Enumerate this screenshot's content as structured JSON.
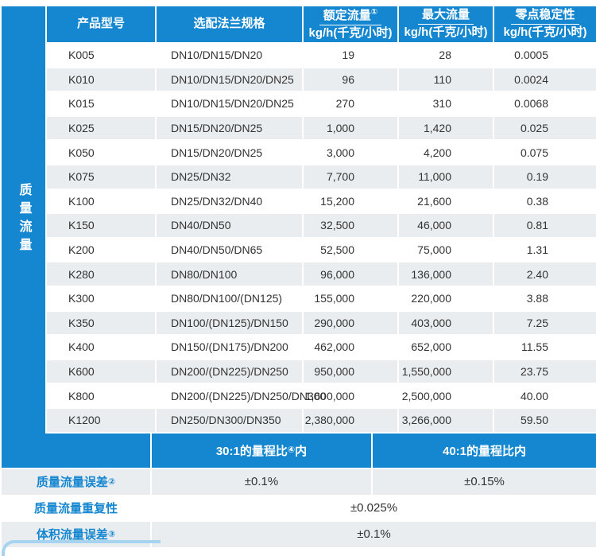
{
  "colors": {
    "accent_blue": "#1487d0",
    "row_gray": "#e9edf0",
    "corner_light_blue": "#a6d4ef",
    "text_dark": "#333333",
    "text_white": "#ffffff"
  },
  "sidebar": {
    "label": "质量流量"
  },
  "table": {
    "headers": {
      "model": "产品型号",
      "flange": "选配法兰规格",
      "rated_title": "额定流量",
      "rated_sup": "①",
      "rated_unit": "kg/h(千克/小时)",
      "max_title": "最大流量",
      "max_unit": "kg/h(千克/小时)",
      "zero_title": "零点稳定性",
      "zero_unit": "kg/h(千克/小时)"
    },
    "rows": [
      {
        "model": "K005",
        "flange": "DN10/DN15/DN20",
        "rated": "19",
        "max": "28",
        "zero": "0.0005"
      },
      {
        "model": "K010",
        "flange": "DN10/DN15/DN20/DN25",
        "rated": "96",
        "max": "110",
        "zero": "0.0024"
      },
      {
        "model": "K015",
        "flange": "DN10/DN15/DN20/DN25",
        "rated": "270",
        "max": "310",
        "zero": "0.0068"
      },
      {
        "model": "K025",
        "flange": "DN15/DN20/DN25",
        "rated": "1,000",
        "max": "1,420",
        "zero": "0.025"
      },
      {
        "model": "K050",
        "flange": "DN15/DN20/DN25",
        "rated": "3,000",
        "max": "4,200",
        "zero": "0.075"
      },
      {
        "model": "K075",
        "flange": "DN25/DN32",
        "rated": "7,700",
        "max": "11,000",
        "zero": "0.19"
      },
      {
        "model": "K100",
        "flange": "DN25/DN32/DN40",
        "rated": "15,200",
        "max": "21,600",
        "zero": "0.38"
      },
      {
        "model": "K150",
        "flange": "DN40/DN50",
        "rated": "32,500",
        "max": "46,000",
        "zero": "0.81"
      },
      {
        "model": "K200",
        "flange": "DN40/DN50/DN65",
        "rated": "52,500",
        "max": "75,000",
        "zero": "1.31"
      },
      {
        "model": "K280",
        "flange": "DN80/DN100",
        "rated": "96,000",
        "max": "136,000",
        "zero": "2.40"
      },
      {
        "model": "K300",
        "flange": "DN80/DN100/(DN125)",
        "rated": "155,000",
        "max": "220,000",
        "zero": "3.88"
      },
      {
        "model": "K350",
        "flange": "DN100/(DN125)/DN150",
        "rated": "290,000",
        "max": "403,000",
        "zero": "7.25"
      },
      {
        "model": "K400",
        "flange": "DN150/(DN175)/DN200",
        "rated": "462,000",
        "max": "652,000",
        "zero": "11.55"
      },
      {
        "model": "K600",
        "flange": "DN200/(DN225)/DN250",
        "rated": "950,000",
        "max": "1,550,000",
        "zero": "23.75"
      },
      {
        "model": "K800",
        "flange": "DN200/(DN225)/DN250/DN300",
        "rated": "1,600,000",
        "max": "2,500,000",
        "zero": "40.00"
      },
      {
        "model": "K1200",
        "flange": "DN250/DN300/DN350",
        "rated": "2,380,000",
        "max": "3,266,000",
        "zero": "59.50"
      }
    ]
  },
  "accuracy": {
    "band": {
      "col1_pre": "30:1的量程比",
      "col1_sup": "④",
      "col1_post": "内",
      "col2": "40:1的量程比内"
    },
    "mass_error": {
      "label": "质量流量误差",
      "sup": "②",
      "val_30": "±0.1%",
      "val_40": "±0.15%"
    },
    "repeatability": {
      "label": "质量流量重复性",
      "value": "±0.025%"
    },
    "volume_error": {
      "label": "体积流量误差",
      "sup": "③",
      "value": "±0.1%"
    }
  }
}
